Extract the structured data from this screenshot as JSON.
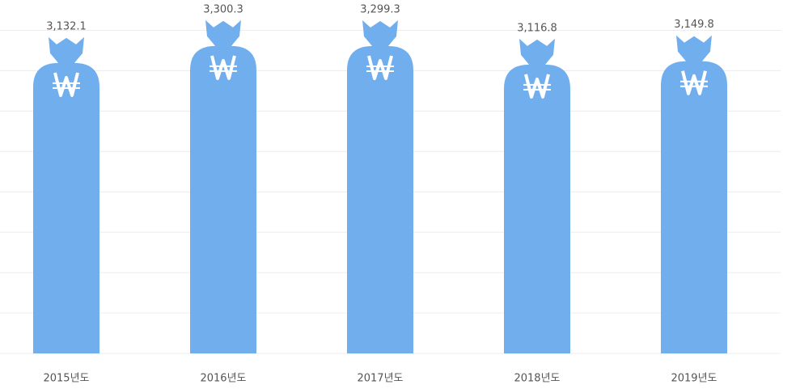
{
  "chart_data": {
    "type": "pictorial-bar",
    "categories": [
      "2015년도",
      "2016년도",
      "2017년도",
      "2018년도",
      "2019년도"
    ],
    "values": [
      3132.1,
      3300.3,
      3299.3,
      3116.8,
      3149.8
    ],
    "value_labels": [
      "3,132.1",
      "3,300.3",
      "3,299.3",
      "3,116.8",
      "3,149.8"
    ],
    "color": "#70aeee",
    "ylim": [
      0,
      3500
    ],
    "yticks": [
      0,
      400,
      800,
      1200,
      1600,
      2000,
      2400,
      2800,
      3200
    ],
    "grid": true
  }
}
